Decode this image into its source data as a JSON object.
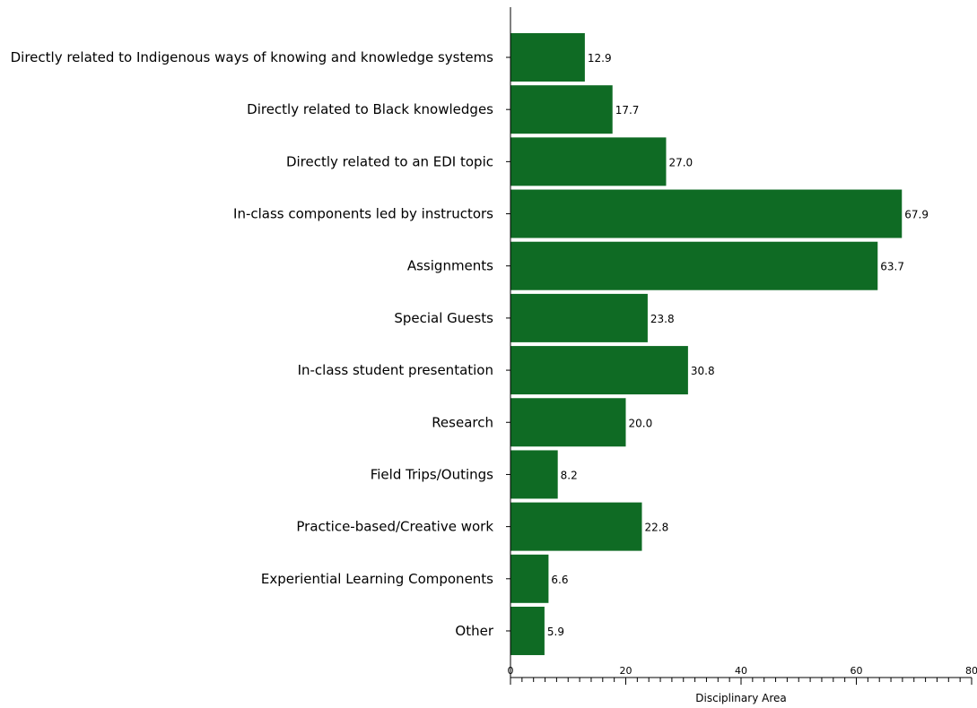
{
  "chart_data": {
    "type": "bar",
    "orientation": "horizontal",
    "categories": [
      "Directly related to Indigenous ways of knowing and knowledge systems",
      "Directly related to Black knowledges",
      "Directly related to an EDI topic",
      "In-class components led by instructors",
      "Assignments",
      "Special Guests",
      "In-class student presentation",
      "Research",
      "Field Trips/Outings",
      "Practice-based/Creative work",
      "Experiential Learning Components",
      "Other"
    ],
    "values": [
      12.9,
      17.7,
      27.0,
      67.9,
      63.7,
      23.8,
      30.8,
      20.0,
      8.2,
      22.8,
      6.6,
      5.9
    ],
    "value_labels": [
      "12.9",
      "17.7",
      "27.0",
      "67.9",
      "63.7",
      "23.8",
      "30.8",
      "20.0",
      "8.2",
      "22.8",
      "6.6",
      "5.9"
    ],
    "xlabel": "Disciplinary Area",
    "xlim": [
      0,
      80
    ],
    "xticks": [
      0,
      20,
      40,
      60,
      80
    ],
    "xtick_labels": [
      "0",
      "20",
      "40",
      "60",
      "80"
    ],
    "grid": false,
    "bar_color": "#0f6b24"
  }
}
